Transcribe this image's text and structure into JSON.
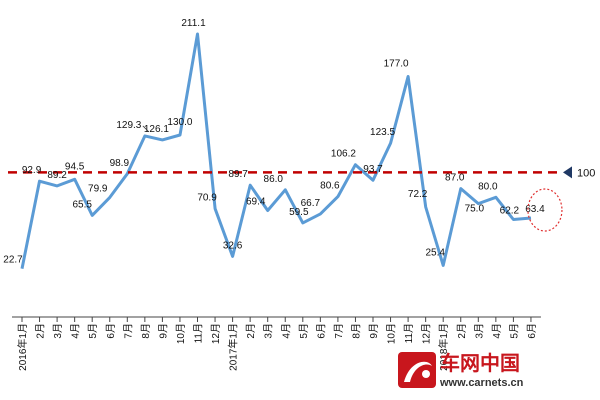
{
  "chart_data": {
    "type": "line",
    "title": "",
    "xlabel": "",
    "ylabel": "",
    "ylim": [
      0,
      230
    ],
    "grid": false,
    "legend": "none",
    "categories": [
      "2016年1月",
      "2月",
      "3月",
      "4月",
      "5月",
      "6月",
      "7月",
      "8月",
      "9月",
      "10月",
      "11月",
      "12月",
      "2017年1月",
      "2月",
      "3月",
      "4月",
      "5月",
      "6月",
      "7月",
      "8月",
      "9月",
      "10月",
      "11月",
      "12月",
      "2018年1月",
      "2月",
      "3月",
      "4月",
      "5月",
      "6月"
    ],
    "series": [
      {
        "values": [
          22.7,
          92.9,
          89.2,
          94.5,
          65.5,
          79.9,
          98.9,
          129.3,
          126.1,
          130.0,
          211.1,
          70.9,
          32.6,
          89.7,
          69.4,
          86.0,
          59.5,
          66.7,
          80.6,
          106.2,
          93.7,
          123.5,
          177.0,
          72.2,
          25.4,
          87.0,
          75.0,
          80.0,
          62.2,
          63.4
        ]
      }
    ],
    "reference_line": {
      "value": 100,
      "label": "100"
    },
    "highlight_index": 29,
    "colors": {
      "line": "#5b9bd5",
      "reference": "#c00000",
      "highlight": "#e03030",
      "marker": "#1f3864"
    }
  },
  "watermark": {
    "brand": "车网中国",
    "url": "www.carnets.cn"
  }
}
